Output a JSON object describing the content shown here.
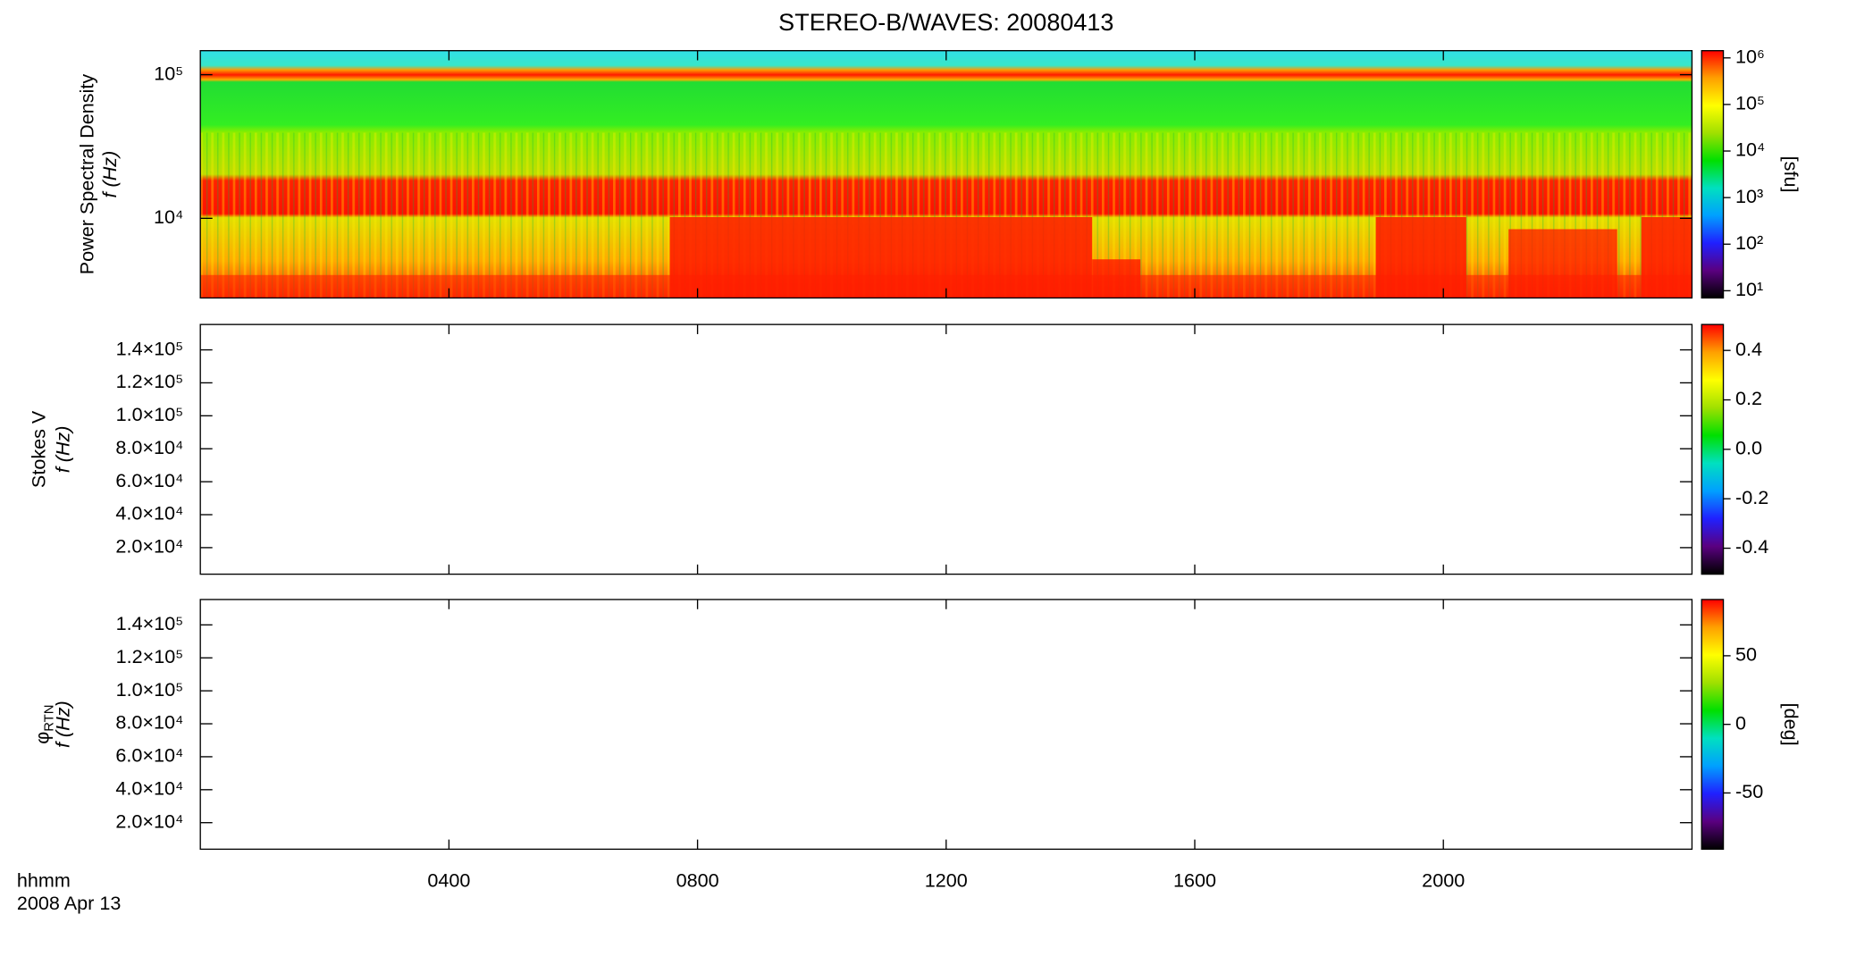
{
  "chart_data": [
    {
      "type": "spectrogram",
      "title": "STEREO-B/WAVES: 20080413",
      "quantity": "Power Spectral Density",
      "ylabel": "f (Hz)",
      "ylog": true,
      "ylim": [
        2790,
        147000
      ],
      "yticks": [
        {
          "value": 10000,
          "label": "10⁴"
        },
        {
          "value": 100000,
          "label": "10⁵"
        }
      ],
      "colormap": "rainbow",
      "clog": true,
      "clim": [
        7,
        1430000
      ],
      "clabel": "[sfu]",
      "cticks": [
        {
          "value": 10,
          "label": "10¹"
        },
        {
          "value": 100,
          "label": "10²"
        },
        {
          "value": 1000,
          "label": "10³"
        },
        {
          "value": 10000,
          "label": "10⁴"
        },
        {
          "value": 100000,
          "label": "10⁵"
        },
        {
          "value": 1000000,
          "label": "10⁶"
        }
      ],
      "xlim": [
        0,
        24
      ],
      "xticks": [
        {
          "value": 4,
          "label": "0400"
        },
        {
          "value": 8,
          "label": "0800"
        },
        {
          "value": 12,
          "label": "1200"
        },
        {
          "value": 16,
          "label": "1600"
        },
        {
          "value": 20,
          "label": "2000"
        }
      ]
    },
    {
      "type": "spectrogram",
      "quantity": "Stokes V",
      "ylabel": "f (Hz)",
      "ylog": false,
      "ylim": [
        3900,
        155400
      ],
      "yticks": [
        {
          "value": 20000,
          "label": "2.0×10⁴"
        },
        {
          "value": 40000,
          "label": "4.0×10⁴"
        },
        {
          "value": 60000,
          "label": "6.0×10⁴"
        },
        {
          "value": 80000,
          "label": "8.0×10⁴"
        },
        {
          "value": 100000,
          "label": "1.0×10⁵"
        },
        {
          "value": 120000,
          "label": "1.2×10⁵"
        },
        {
          "value": 140000,
          "label": "1.4×10⁵"
        }
      ],
      "colormap": "rainbow",
      "clog": false,
      "clim": [
        -0.505,
        0.505
      ],
      "cticks": [
        -0.4,
        -0.2,
        {
          "value": 0,
          "label": "0.0"
        },
        0.2,
        0.4
      ],
      "xlim": [
        0,
        24
      ],
      "xticks": [
        {
          "value": 4,
          "label": "0400"
        },
        {
          "value": 8,
          "label": "0800"
        },
        {
          "value": 12,
          "label": "1200"
        },
        {
          "value": 16,
          "label": "1600"
        },
        {
          "value": 20,
          "label": "2000"
        }
      ]
    },
    {
      "type": "spectrogram",
      "quantity": "φ",
      "quantity_subscript": "RTN",
      "ylabel": "f (Hz)",
      "ylog": false,
      "ylim": [
        3900,
        155400
      ],
      "yticks": [
        {
          "value": 20000,
          "label": "2.0×10⁴"
        },
        {
          "value": 40000,
          "label": "4.0×10⁴"
        },
        {
          "value": 60000,
          "label": "6.0×10⁴"
        },
        {
          "value": 80000,
          "label": "8.0×10⁴"
        },
        {
          "value": 100000,
          "label": "1.0×10⁵"
        },
        {
          "value": 120000,
          "label": "1.2×10⁵"
        },
        {
          "value": 140000,
          "label": "1.4×10⁵"
        }
      ],
      "colormap": "rainbow",
      "clog": false,
      "clim": [
        -91,
        91
      ],
      "clabel": "[deg]",
      "cticks": [
        -50,
        0,
        50
      ],
      "xlim": [
        0,
        24
      ],
      "xticks": [
        {
          "value": 4,
          "label": "0400"
        },
        {
          "value": 8,
          "label": "0800"
        },
        {
          "value": 12,
          "label": "1200"
        },
        {
          "value": 16,
          "label": "1600"
        },
        {
          "value": 20,
          "label": "2000"
        }
      ],
      "xlabel": "hhmm",
      "date": "2008 Apr 13"
    }
  ]
}
